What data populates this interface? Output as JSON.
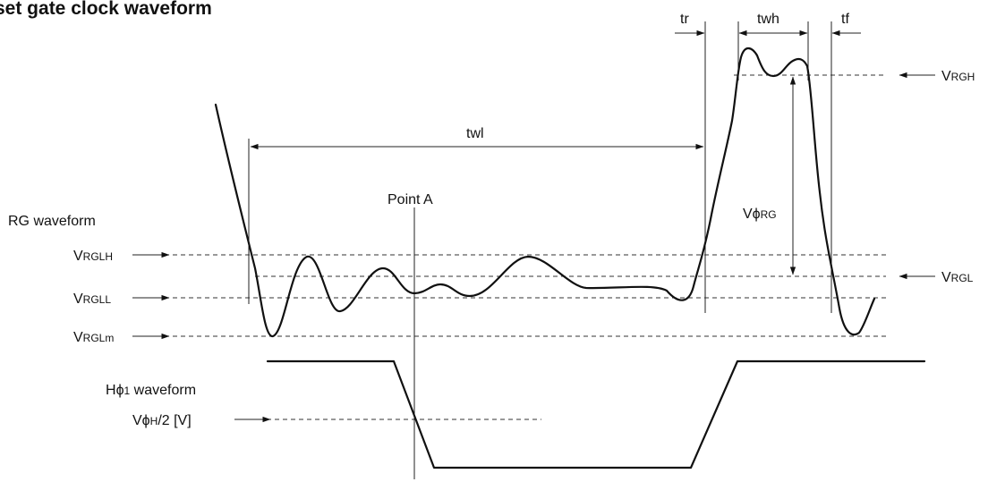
{
  "title": "set gate clock waveform",
  "rg_waveform": {
    "title": "RG waveform"
  },
  "h1_waveform": {
    "title_main": "H",
    "title_phi": "ϕ",
    "title_sub": "1",
    "title_rest": " waveform"
  },
  "levels": {
    "vrglh": {
      "v": "V",
      "sub": "RGLH"
    },
    "vrgll": {
      "v": "V",
      "sub": "RGLL"
    },
    "vrglm": {
      "v": "V",
      "sub": "RGLm"
    },
    "vrgh": {
      "v": "V",
      "sub": "RGH"
    },
    "vrgl": {
      "v": "V",
      "sub": "RGL"
    },
    "vphi_h": {
      "v": "V",
      "phi": "ϕ",
      "sub": "H",
      "rest": "/2 [V]"
    }
  },
  "timing": {
    "tr": "tr",
    "twh": "twh",
    "tf": "tf",
    "twl": "twl"
  },
  "amplitude": {
    "v": "V",
    "phi": "ϕ",
    "sub": "RG"
  },
  "point_a": "Point A"
}
